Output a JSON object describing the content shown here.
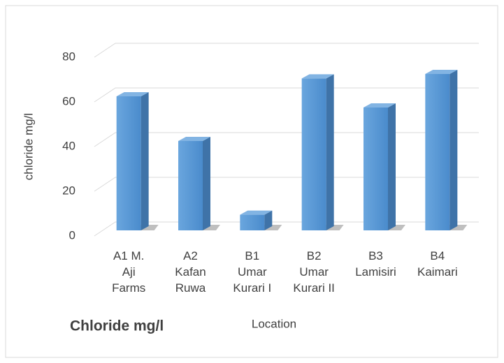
{
  "chart_data": {
    "type": "bar3d",
    "title": "Chloride mg/l",
    "x_label": "Location",
    "y_label": "chloride mg/l",
    "categories": [
      "A1 M.\nAji\nFarms",
      "A2\nKafan\nRuwa",
      "B1\nUmar\nKurari I",
      "B2\nUmar\nKurari II",
      "B3\nLamisiri",
      "B4\nKaimari"
    ],
    "values": [
      60,
      40,
      7,
      68,
      55,
      70
    ],
    "color": "#5b9bd5",
    "ylim": [
      0,
      80
    ],
    "yticks": [
      0,
      20,
      40,
      60,
      80
    ],
    "grid": true
  }
}
